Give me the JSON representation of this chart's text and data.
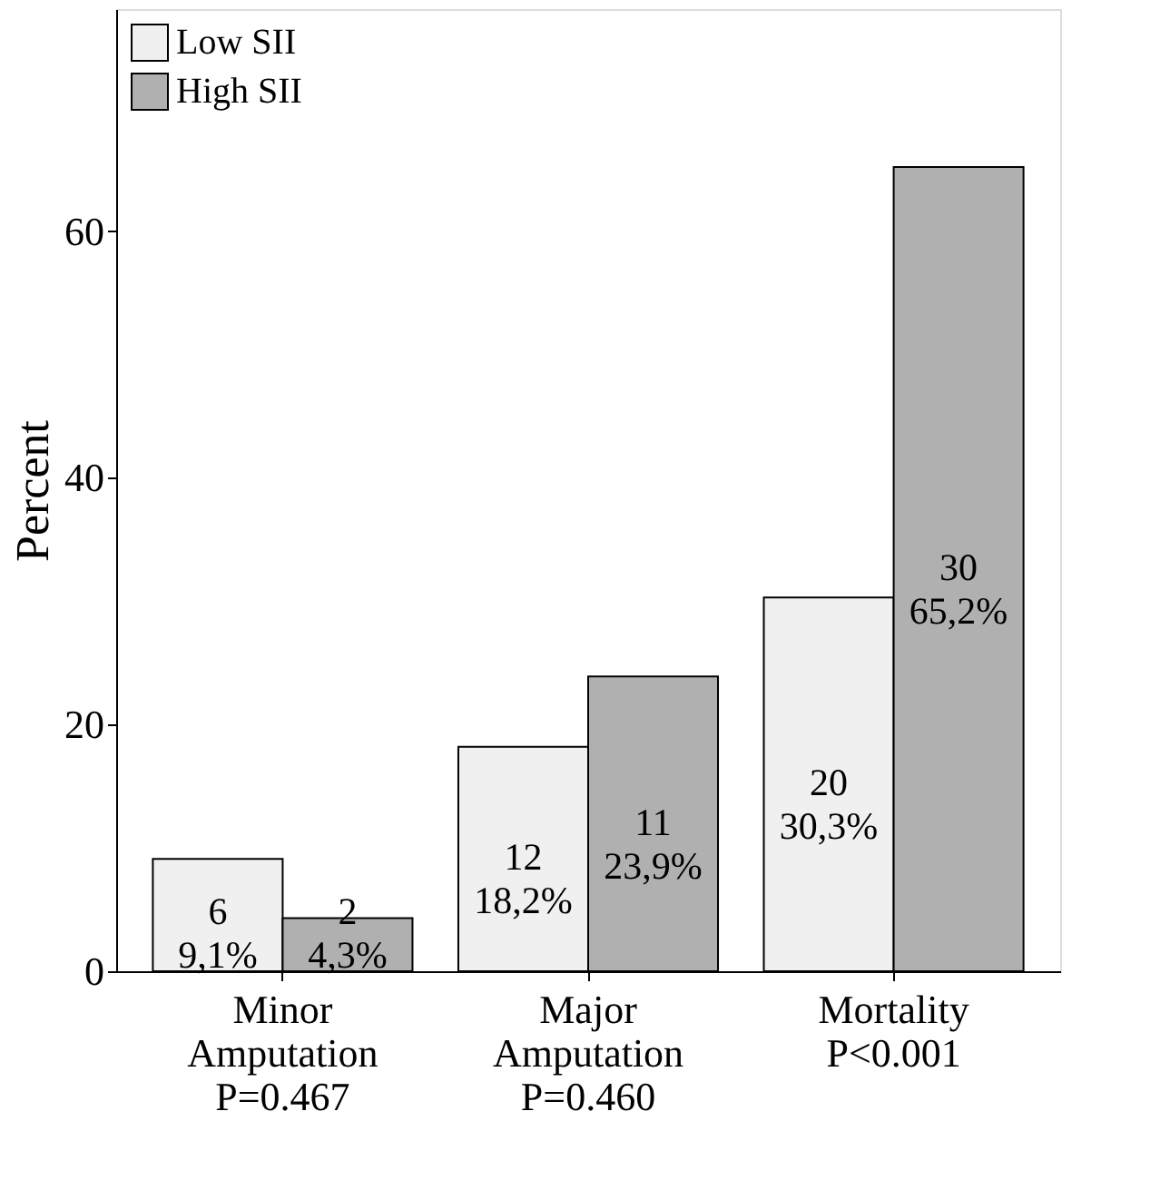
{
  "chart_data": {
    "type": "bar",
    "categories": [
      "Minor\nAmputation\nP=0.467",
      "Major\nAmputation\nP=0.460",
      "Mortality\nP<0.001"
    ],
    "series": [
      {
        "name": "Low SII",
        "color": "#f0f0f0",
        "values": [
          9.1,
          18.2,
          30.3
        ],
        "value_labels": [
          "6\n9,1%",
          "12\n18,2%",
          "20\n30,3%"
        ]
      },
      {
        "name": "High SII",
        "color": "#b0b0b0",
        "values": [
          4.3,
          23.9,
          65.2
        ],
        "value_labels": [
          "2\n4,3%",
          "11\n23,9%",
          "30\n65,2%"
        ]
      }
    ],
    "ylabel": "Percent",
    "ylim": [
      0,
      78
    ],
    "yticks": [
      0,
      20,
      40,
      60
    ],
    "grid": false,
    "legend": "top left"
  }
}
